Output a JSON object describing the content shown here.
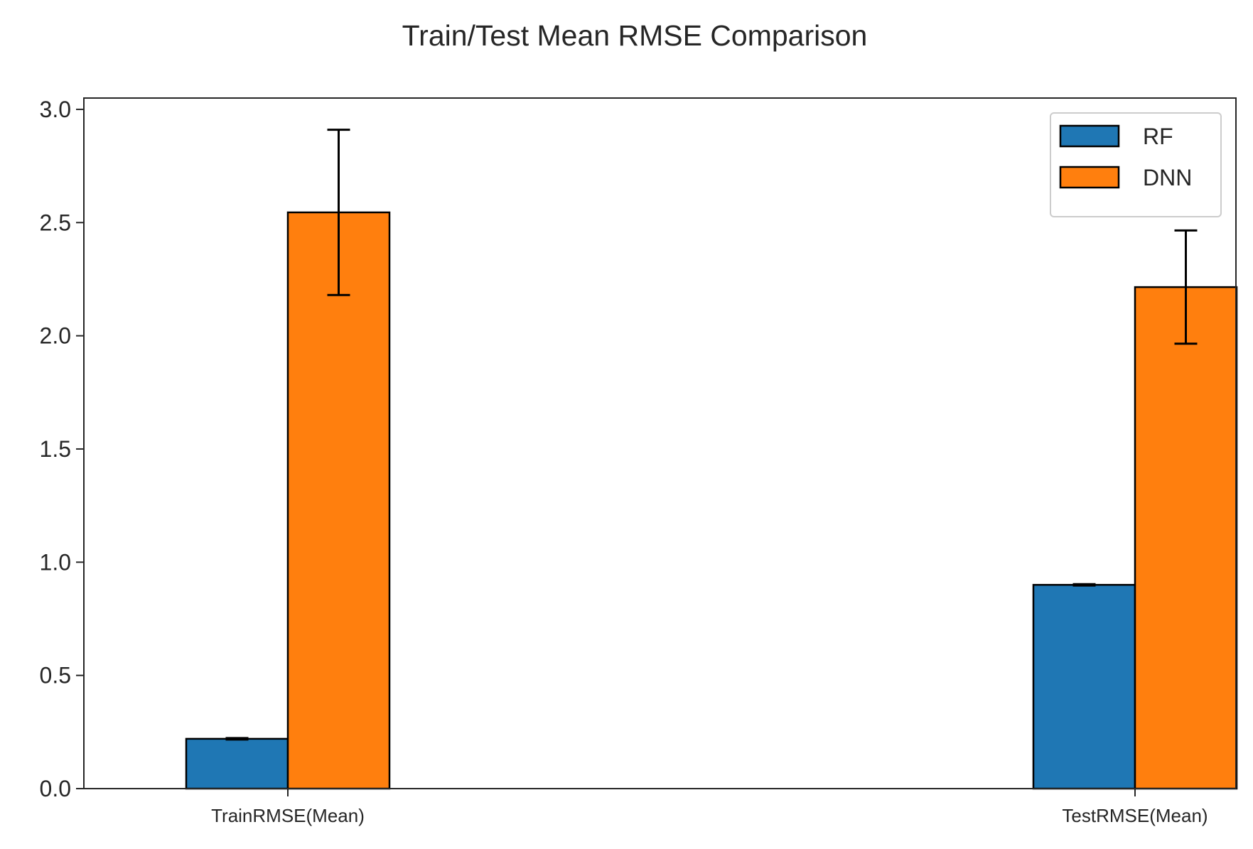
{
  "chart_data": {
    "type": "bar",
    "title": "Train/Test Mean RMSE Comparison",
    "xlabel": "",
    "ylabel": "",
    "categories": [
      "TrainRMSE(Mean)",
      "TestRMSE(Mean)"
    ],
    "series": [
      {
        "name": "RF",
        "color": "#1f77b4",
        "values": [
          0.22,
          0.9
        ],
        "errors": [
          0.003,
          0.003
        ]
      },
      {
        "name": "DNN",
        "color": "#ff7f0e",
        "values": [
          2.545,
          2.215
        ],
        "errors": [
          0.365,
          0.25
        ]
      }
    ],
    "ylim": [
      0,
      3.05
    ],
    "yticks": [
      0.0,
      0.5,
      1.0,
      1.5,
      2.0,
      2.5,
      3.0
    ],
    "ytick_labels": [
      "0.0",
      "0.5",
      "1.0",
      "1.5",
      "2.0",
      "2.5",
      "3.0"
    ],
    "grid": false,
    "legend_position": "top-right",
    "bar_edge_color": "#000000",
    "error_bar_color": "#000000"
  }
}
